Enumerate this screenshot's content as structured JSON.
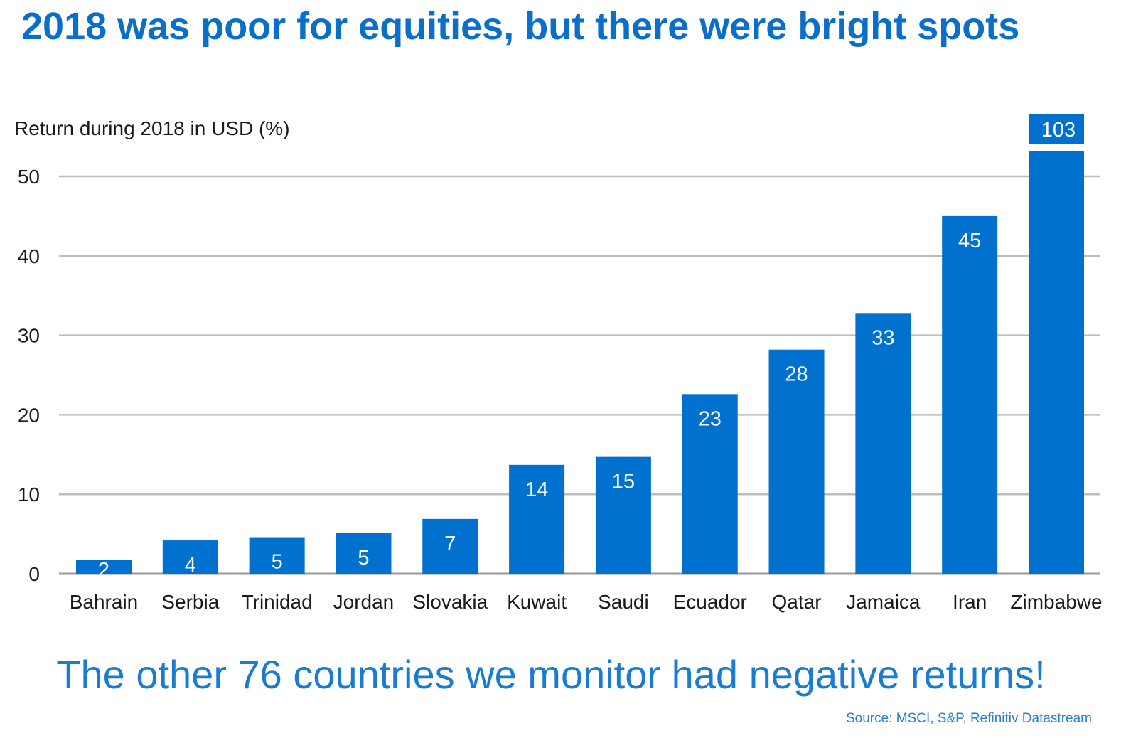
{
  "title": "2018 was poor for equities, but there were bright spots",
  "footer_note": "The other 76 countries we monitor had negative returns!",
  "source": "Source: MSCI, S&P, Refinitiv Datastream",
  "colors": {
    "bar": "#0071ce",
    "title": "#0a6fc9",
    "grid": "#bdbdbd",
    "text": "#1a1a1a",
    "bar_label": "#ffffff"
  },
  "chart_data": {
    "type": "bar",
    "title": "2018 was poor for equities, but there were bright spots",
    "ylabel": "Return during 2018 in USD (%)",
    "xlabel": "",
    "ylim": [
      0,
      50
    ],
    "yticks": [
      0,
      10,
      20,
      30,
      40,
      50
    ],
    "grid": true,
    "categories": [
      "Bahrain",
      "Serbia",
      "Trinidad",
      "Jordan",
      "Slovakia",
      "Kuwait",
      "Saudi",
      "Ecuador",
      "Qatar",
      "Jamaica",
      "Iran",
      "Zimbabwe"
    ],
    "values": [
      1.7,
      4.2,
      4.6,
      5.1,
      6.9,
      13.7,
      14.7,
      22.6,
      28.2,
      32.8,
      45.0,
      103
    ],
    "data_labels": [
      "2",
      "4",
      "5",
      "5",
      "7",
      "14",
      "15",
      "23",
      "28",
      "33",
      "45",
      "103"
    ],
    "truncated": [
      "Zimbabwe"
    ]
  }
}
